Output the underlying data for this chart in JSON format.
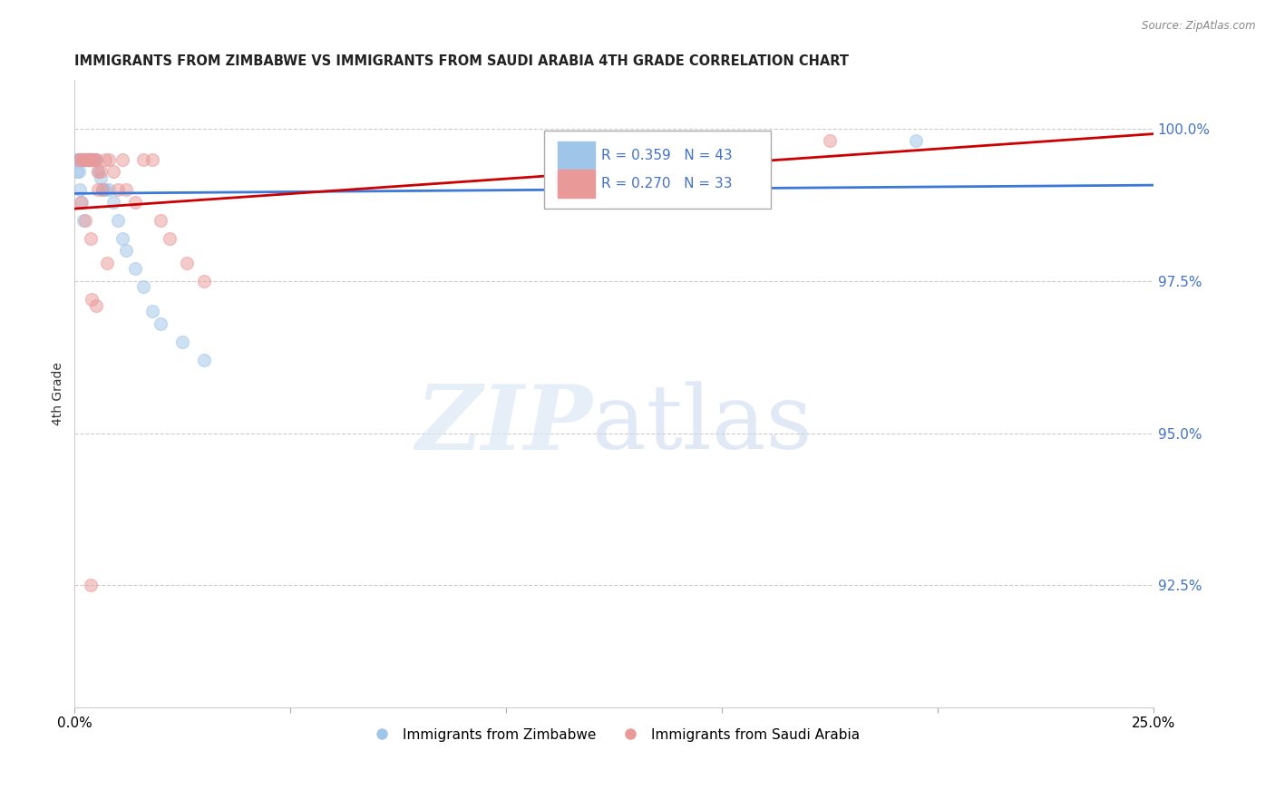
{
  "title": "IMMIGRANTS FROM ZIMBABWE VS IMMIGRANTS FROM SAUDI ARABIA 4TH GRADE CORRELATION CHART",
  "source": "Source: ZipAtlas.com",
  "ylabel_label": "4th Grade",
  "xlim": [
    0.0,
    25.0
  ],
  "ylim": [
    90.5,
    100.8
  ],
  "legend1_label": "Immigrants from Zimbabwe",
  "legend2_label": "Immigrants from Saudi Arabia",
  "r_blue": 0.359,
  "n_blue": 43,
  "r_pink": 0.27,
  "n_pink": 33,
  "blue_scatter_x": [
    0.05,
    0.08,
    0.1,
    0.12,
    0.14,
    0.16,
    0.18,
    0.2,
    0.22,
    0.24,
    0.26,
    0.28,
    0.3,
    0.32,
    0.34,
    0.36,
    0.38,
    0.4,
    0.42,
    0.45,
    0.5,
    0.55,
    0.6,
    0.65,
    0.7,
    0.8,
    0.9,
    1.0,
    1.1,
    1.2,
    1.4,
    1.6,
    1.8,
    2.0,
    2.5,
    3.0,
    0.06,
    0.09,
    0.13,
    0.17,
    0.21,
    13.5,
    19.5
  ],
  "blue_scatter_y": [
    99.5,
    99.5,
    99.5,
    99.5,
    99.5,
    99.5,
    99.5,
    99.5,
    99.5,
    99.5,
    99.5,
    99.5,
    99.5,
    99.5,
    99.5,
    99.5,
    99.5,
    99.5,
    99.5,
    99.5,
    99.5,
    99.3,
    99.2,
    99.0,
    99.0,
    99.0,
    98.8,
    98.5,
    98.2,
    98.0,
    97.7,
    97.4,
    97.0,
    96.8,
    96.5,
    96.2,
    99.3,
    99.3,
    99.0,
    98.8,
    98.5,
    99.8,
    99.8
  ],
  "pink_scatter_x": [
    0.1,
    0.15,
    0.2,
    0.25,
    0.3,
    0.35,
    0.4,
    0.45,
    0.5,
    0.55,
    0.6,
    0.65,
    0.7,
    0.8,
    0.9,
    1.0,
    1.1,
    1.2,
    1.4,
    1.6,
    1.8,
    2.0,
    2.2,
    2.6,
    3.0,
    0.15,
    0.25,
    0.38,
    0.55,
    0.75,
    0.4,
    0.5,
    17.5
  ],
  "pink_scatter_y": [
    99.5,
    99.5,
    99.5,
    99.5,
    99.5,
    99.5,
    99.5,
    99.5,
    99.5,
    99.3,
    99.3,
    99.0,
    99.5,
    99.5,
    99.3,
    99.0,
    99.5,
    99.0,
    98.8,
    99.5,
    99.5,
    98.5,
    98.2,
    97.8,
    97.5,
    98.8,
    98.5,
    98.2,
    99.0,
    97.8,
    97.2,
    97.1,
    99.8
  ],
  "pink_outlier_x": 0.38,
  "pink_outlier_y": 92.5,
  "blue_color": "#9fc5e8",
  "pink_color": "#ea9999",
  "blue_line_color": "#3c78d8",
  "pink_line_color": "#cc0000",
  "grid_color": "#cccccc"
}
